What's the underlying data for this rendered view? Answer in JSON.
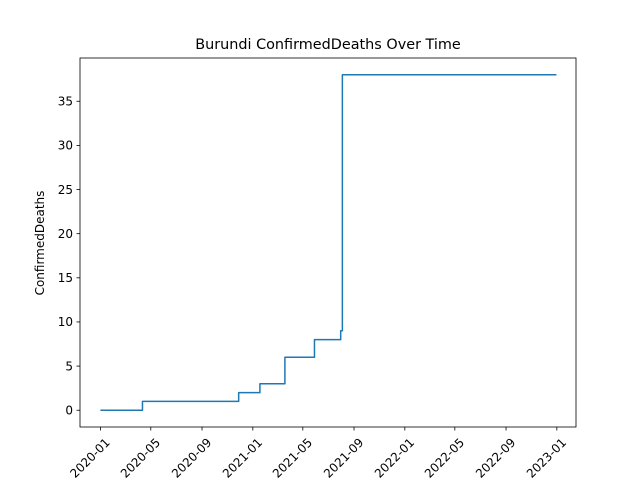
{
  "chart_data": {
    "type": "line",
    "title": "Burundi  ConfirmedDeaths Over Time",
    "xlabel": "",
    "ylabel": "ConfirmedDeaths",
    "ylim": [
      -1.9,
      39.9
    ],
    "xlim": [
      "2019-11-13",
      "2023-02-16"
    ],
    "grid": false,
    "legend": "none",
    "line_color": "#1f77b4",
    "x_ticks": [
      "2020-01",
      "2020-05",
      "2020-09",
      "2021-01",
      "2021-05",
      "2021-09",
      "2022-01",
      "2022-05",
      "2022-09",
      "2023-01"
    ],
    "y_ticks": [
      0,
      5,
      10,
      15,
      20,
      25,
      30,
      35
    ],
    "series": [
      {
        "step": "post",
        "points": [
          [
            "2020-01-01",
            0
          ],
          [
            "2020-04-11",
            1
          ],
          [
            "2020-11-28",
            2
          ],
          [
            "2021-01-18",
            3
          ],
          [
            "2021-03-19",
            6
          ],
          [
            "2021-05-29",
            8
          ],
          [
            "2021-07-31",
            9
          ],
          [
            "2021-08-04",
            38
          ],
          [
            "2022-12-31",
            38
          ]
        ]
      }
    ]
  }
}
